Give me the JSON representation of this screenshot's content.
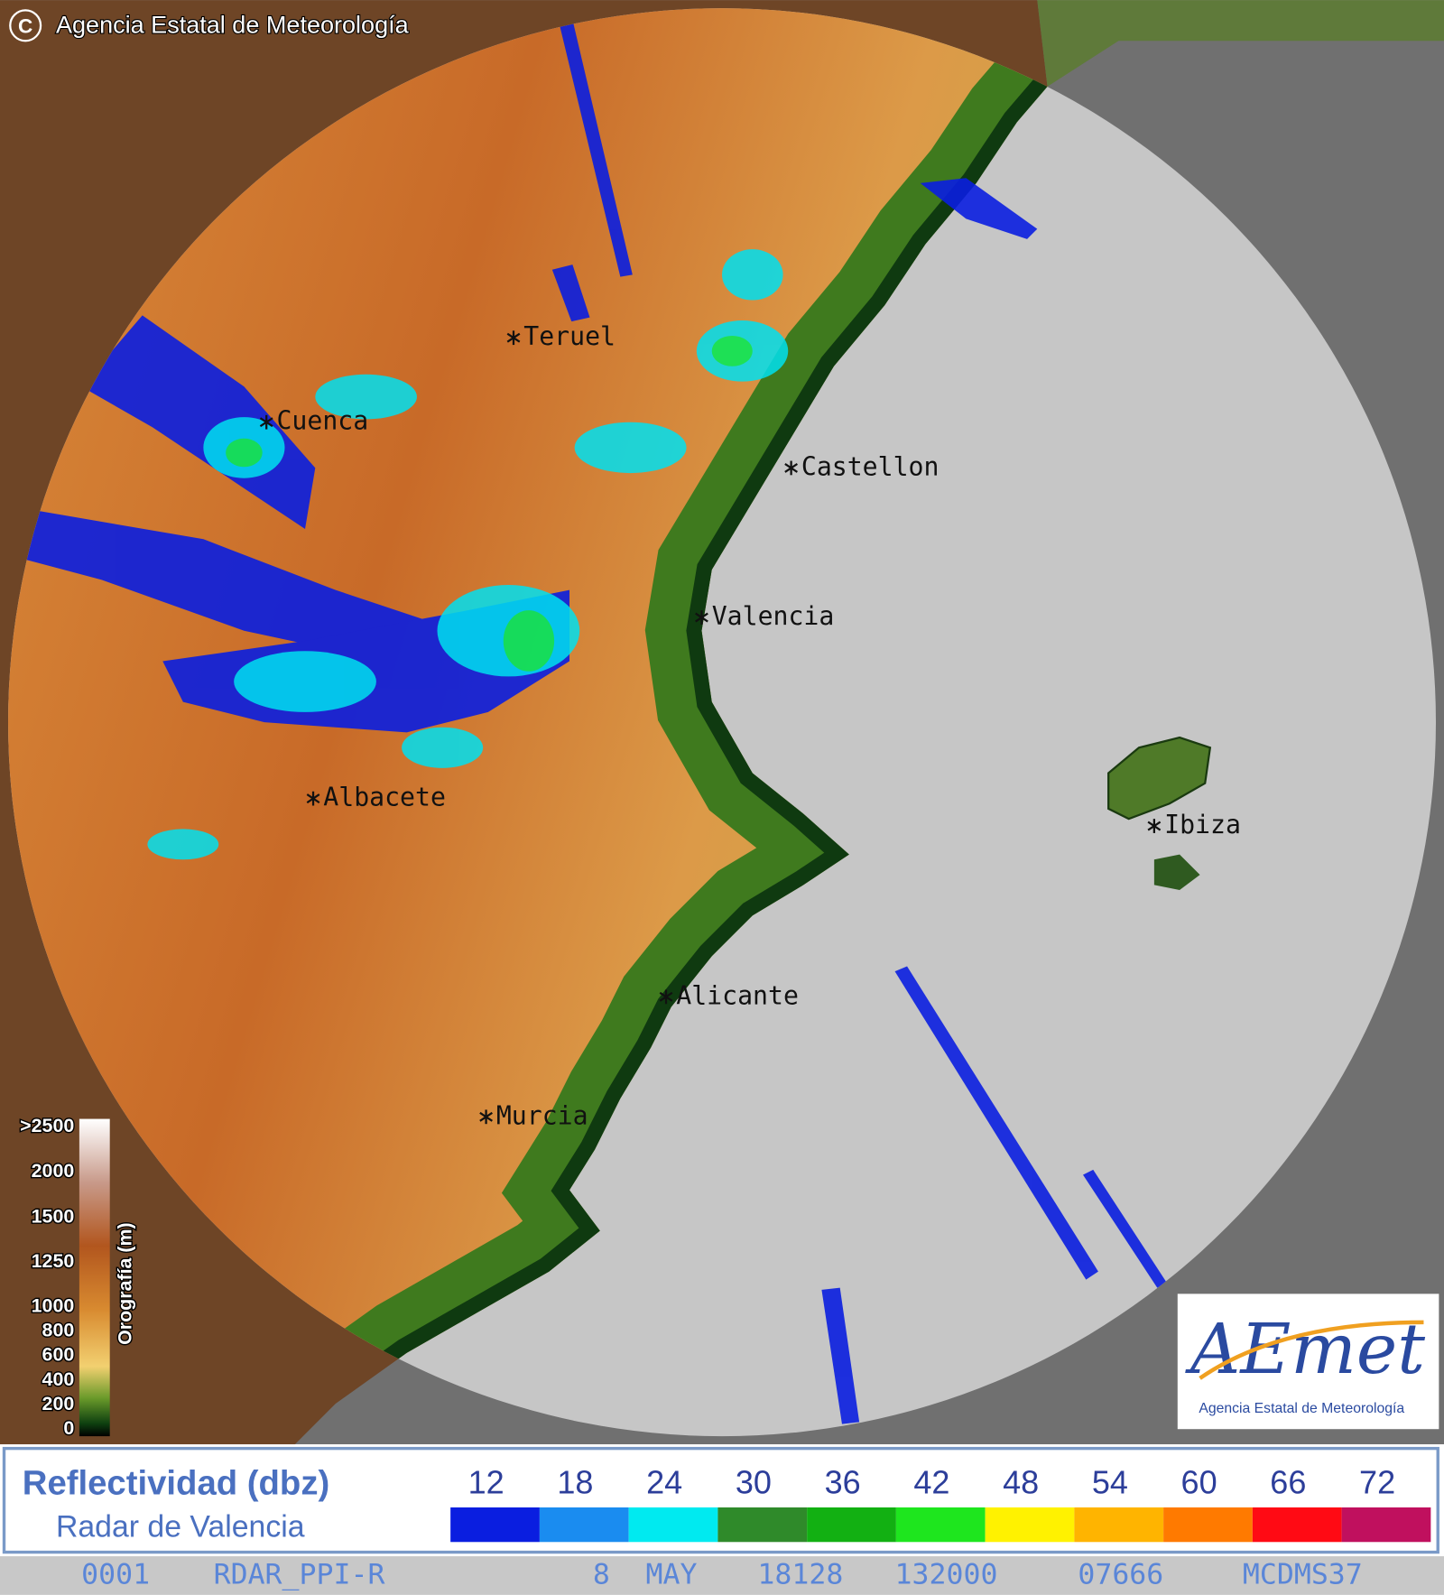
{
  "header": {
    "copyright": "©",
    "agency": "Agencia Estatal de Meteorología"
  },
  "cities": [
    {
      "name": "Teruel",
      "pos": "teruel"
    },
    {
      "name": "Cuenca",
      "pos": "cuenca"
    },
    {
      "name": "Castellon",
      "pos": "castellon"
    },
    {
      "name": "Valencia",
      "pos": "valencia"
    },
    {
      "name": "Albacete",
      "pos": "albacete"
    },
    {
      "name": "Ibiza",
      "pos": "ibiza"
    },
    {
      "name": "Alicante",
      "pos": "alicante"
    },
    {
      "name": "Murcia",
      "pos": "murcia"
    }
  ],
  "orography_legend": {
    "title": "Orografía (m)",
    "labels": [
      ">2500",
      "2000",
      "1500",
      "1250",
      "1000",
      "800",
      "600",
      "400",
      "200",
      "0"
    ]
  },
  "logo": {
    "name": "AEmet",
    "subtitle": "Agencia Estatal de Meteorología"
  },
  "reflectivity_legend": {
    "title": "Reflectividad (dbz)",
    "subtitle": "Radar de Valencia",
    "steps": [
      {
        "label": "12",
        "color": "#0a1ee0"
      },
      {
        "label": "18",
        "color": "#1a8cf0"
      },
      {
        "label": "24",
        "color": "#00eaf0"
      },
      {
        "label": "30",
        "color": "#2f8a2a"
      },
      {
        "label": "36",
        "color": "#12b012"
      },
      {
        "label": "42",
        "color": "#1ee61e"
      },
      {
        "label": "48",
        "color": "#fff200"
      },
      {
        "label": "54",
        "color": "#ffb400"
      },
      {
        "label": "60",
        "color": "#ff7a00"
      },
      {
        "label": "66",
        "color": "#ff0a14"
      },
      {
        "label": "72",
        "color": "#c0105e"
      }
    ]
  },
  "status_line": [
    "0001",
    "RDAR_PPI-R",
    "8",
    "MAY",
    "18128",
    "132000",
    "07666",
    "MCDMS37"
  ]
}
